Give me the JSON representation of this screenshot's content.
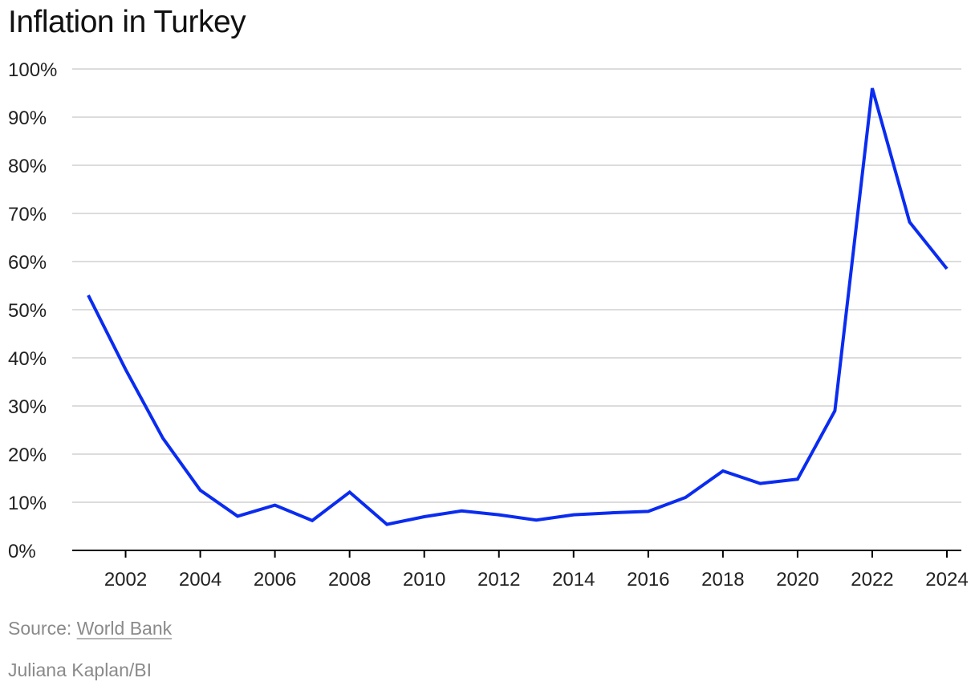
{
  "title": "Inflation in Turkey",
  "source_prefix": "Source: ",
  "source_link": "World Bank",
  "credit": "Juliana Kaplan/BI",
  "chart_data": {
    "type": "line",
    "title": "Inflation in Turkey",
    "xlabel": "",
    "ylabel": "",
    "x": [
      2001,
      2002,
      2003,
      2004,
      2005,
      2006,
      2007,
      2008,
      2009,
      2010,
      2011,
      2012,
      2013,
      2014,
      2015,
      2016,
      2017,
      2018,
      2019,
      2020,
      2021,
      2022,
      2023,
      2024
    ],
    "series": [
      {
        "values": [
          53.0,
          37.6,
          23.3,
          12.5,
          7.1,
          9.4,
          6.2,
          12.1,
          5.4,
          7.0,
          8.2,
          7.4,
          6.3,
          7.4,
          7.8,
          8.1,
          11.0,
          16.5,
          13.9,
          14.8,
          29.0,
          96.0,
          68.2,
          58.5
        ],
        "color": "#0a2cf0"
      }
    ],
    "xticks": [
      "2002",
      "2004",
      "2006",
      "2008",
      "2010",
      "2012",
      "2014",
      "2016",
      "2018",
      "2020",
      "2022",
      "2024"
    ],
    "xtick_values": [
      2002,
      2004,
      2006,
      2008,
      2010,
      2012,
      2014,
      2016,
      2018,
      2020,
      2022,
      2024
    ],
    "yticks": [
      "0%",
      "10%",
      "20%",
      "30%",
      "40%",
      "50%",
      "60%",
      "70%",
      "80%",
      "90%",
      "100%"
    ],
    "ytick_values": [
      0,
      10,
      20,
      30,
      40,
      50,
      60,
      70,
      80,
      90,
      100
    ],
    "xlim": [
      2001,
      2024
    ],
    "ylim": [
      0,
      100
    ],
    "grid": true,
    "gridline_color": "#dcdcdc",
    "axis_color": "#000000"
  }
}
